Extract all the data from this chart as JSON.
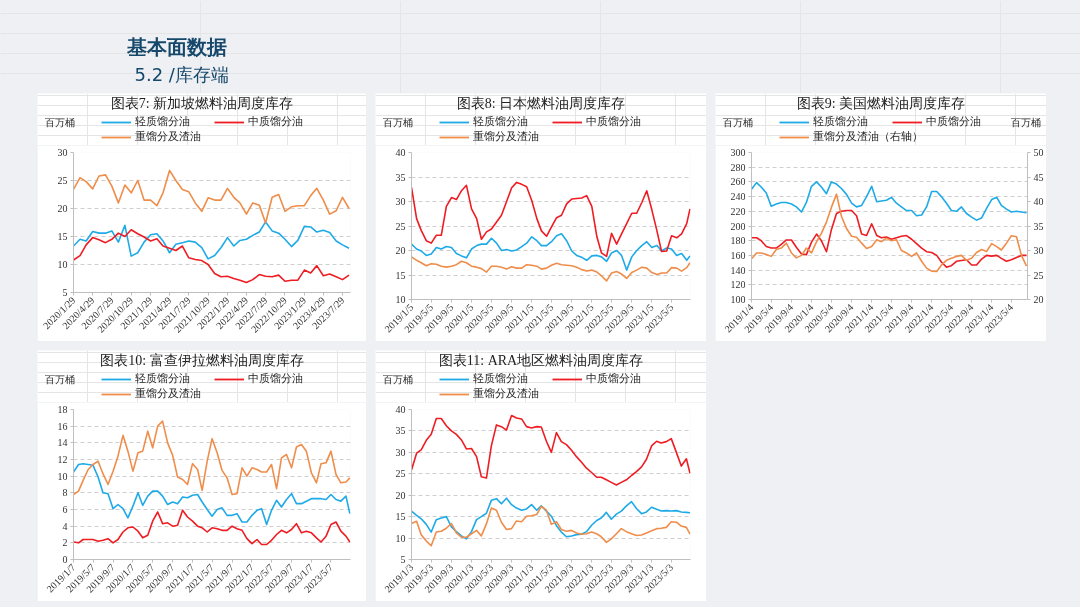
{
  "chart_data": [
    {
      "type": "line",
      "title": "图表7: 新加坡燃料油周度库存",
      "ylabel": "百万桶",
      "annotations": [
        "基本面数据",
        "5.2 /库存端"
      ],
      "x": [
        "2020-01-29",
        "2020-02-29",
        "2020-03-29",
        "2020-04-29",
        "2020-05-29",
        "2020-06-29",
        "2020-07-29",
        "2020-08-29",
        "2020-09-29",
        "2020-10-29",
        "2020-11-29",
        "2020-12-29",
        "2021-01-29",
        "2021-02-28",
        "2021-03-29",
        "2021-04-29",
        "2021-05-29",
        "2021-06-29",
        "2021-07-29",
        "2021-08-29",
        "2021-09-29",
        "2021-10-29",
        "2021-11-29",
        "2021-12-29",
        "2022-01-29",
        "2022-02-28",
        "2022-03-29",
        "2022-04-29",
        "2022-05-29",
        "2022-06-29",
        "2022-07-29",
        "2022-08-29",
        "2022-09-29",
        "2022-10-29",
        "2022-11-29",
        "2022-12-29",
        "2023-01-29",
        "2023-02-28",
        "2023-03-29",
        "2023-04-29",
        "2023-05-29",
        "2023-06-29",
        "2023-07-29",
        "2023-08-29"
      ],
      "series": [
        {
          "name": "轻质馏分油",
          "color": "#1eaae7",
          "values": [
            13.3,
            14.5,
            14.2,
            15.9,
            15.6,
            15.6,
            16.0,
            14.0,
            17.0,
            11.5,
            12.1,
            14.0,
            15.3,
            15.5,
            14.2,
            12.1,
            13.6,
            13.9,
            14.2,
            14.0,
            13.0,
            11.0,
            11.6,
            13.0,
            14.8,
            13.3,
            14.3,
            14.5,
            15.2,
            15.8,
            17.6,
            16.0,
            15.6,
            14.5,
            13.2,
            14.3,
            16.8,
            16.7,
            15.8,
            16.1,
            15.7,
            14.2,
            13.5,
            12.9
          ]
        },
        {
          "name": "中质馏分油",
          "color": "#ee1d23",
          "values": [
            10.8,
            11.6,
            13.5,
            14.8,
            14.4,
            13.9,
            14.5,
            15.6,
            15.0,
            16.2,
            15.5,
            14.9,
            14.2,
            14.6,
            13.3,
            12.9,
            12.5,
            13.3,
            11.2,
            10.9,
            10.7,
            10.0,
            8.4,
            7.8,
            7.9,
            7.5,
            7.2,
            6.8,
            7.3,
            8.2,
            7.9,
            7.8,
            8.1,
            7.0,
            7.2,
            7.2,
            9.0,
            8.5,
            9.8,
            8.0,
            8.3,
            7.8,
            7.3,
            8.1
          ]
        },
        {
          "name": "重馏分及渣油",
          "color": "#ef8d4b",
          "values": [
            23.4,
            25.5,
            24.8,
            23.5,
            25.8,
            26.0,
            24.0,
            21.0,
            24.2,
            22.8,
            25.0,
            21.5,
            21.5,
            20.5,
            22.8,
            26.8,
            25.0,
            23.4,
            23.0,
            21.0,
            19.5,
            21.9,
            21.5,
            21.5,
            23.6,
            22.0,
            21.0,
            19.0,
            21.0,
            20.6,
            17.4,
            22.0,
            22.5,
            19.5,
            20.3,
            20.5,
            20.5,
            22.3,
            23.6,
            21.5,
            19.0,
            19.6,
            22.0,
            20.0
          ]
        }
      ],
      "xlim": [
        "2020-01-29",
        "2023-09-05"
      ],
      "xticks": [
        {
          "value": "2020-01-29",
          "label": "2020/1/29"
        },
        {
          "value": "2020-04-29",
          "label": "2020/4/29"
        },
        {
          "value": "2020-07-29",
          "label": "2020/7/29"
        },
        {
          "value": "2020-10-29",
          "label": "2020/10/29"
        },
        {
          "value": "2021-01-29",
          "label": "2021/1/29"
        },
        {
          "value": "2021-04-29",
          "label": "2021/4/29"
        },
        {
          "value": "2021-07-29",
          "label": "2021/7/29"
        },
        {
          "value": "2021-10-29",
          "label": "2021/10/29"
        },
        {
          "value": "2022-01-29",
          "label": "2022/1/29"
        },
        {
          "value": "2022-04-29",
          "label": "2022/4/29"
        },
        {
          "value": "2022-07-29",
          "label": "2022/7/29"
        },
        {
          "value": "2022-10-29",
          "label": "2022/10/29"
        },
        {
          "value": "2023-01-29",
          "label": "2023/1/29"
        },
        {
          "value": "2023-04-29",
          "label": "2023/4/29"
        },
        {
          "value": "2023-07-29",
          "label": "2023/7/29"
        }
      ],
      "ylim": [
        5,
        30
      ],
      "yticks": [
        5,
        10,
        15,
        20,
        25,
        30
      ],
      "grid": "y",
      "legend": "top"
    },
    {
      "type": "line",
      "title": "图表8: 日本燃料油周度库存",
      "ylabel": "百万桶",
      "x": [
        "2019-01-05",
        "2019-02-05",
        "2019-03-05",
        "2019-04-05",
        "2019-05-05",
        "2019-06-05",
        "2019-07-05",
        "2019-08-05",
        "2019-09-05",
        "2019-10-05",
        "2019-11-05",
        "2019-12-05",
        "2020-01-05",
        "2020-02-05",
        "2020-03-05",
        "2020-04-05",
        "2020-05-05",
        "2020-06-05",
        "2020-07-05",
        "2020-08-05",
        "2020-09-05",
        "2020-10-05",
        "2020-11-05",
        "2020-12-05",
        "2021-01-05",
        "2021-02-05",
        "2021-03-05",
        "2021-04-05",
        "2021-05-05",
        "2021-06-05",
        "2021-07-05",
        "2021-08-05",
        "2021-09-05",
        "2021-10-05",
        "2021-11-05",
        "2021-12-05",
        "2022-01-05",
        "2022-02-05",
        "2022-03-05",
        "2022-04-05",
        "2022-05-05",
        "2022-06-05",
        "2022-07-05",
        "2022-08-05",
        "2022-09-05",
        "2022-10-05",
        "2022-11-05",
        "2022-12-05",
        "2023-01-05",
        "2023-02-05",
        "2023-03-05",
        "2023-04-05",
        "2023-05-05",
        "2023-06-05",
        "2023-07-05",
        "2023-08-05",
        "2023-08-25"
      ],
      "series": [
        {
          "name": "轻质馏分油",
          "color": "#1eaae7",
          "values": [
            21.3,
            20.3,
            19.9,
            19.0,
            19.3,
            20.6,
            20.3,
            20.8,
            20.6,
            19.4,
            18.9,
            18.5,
            20.3,
            21.0,
            21.3,
            21.3,
            22.5,
            21.5,
            20.0,
            20.2,
            19.9,
            20.1,
            20.8,
            21.5,
            22.8,
            22.0,
            21.0,
            21.0,
            21.8,
            23.0,
            23.4,
            22.0,
            19.9,
            19.0,
            18.6,
            18.0,
            18.9,
            19.0,
            18.7,
            17.8,
            19.5,
            20.0,
            19.0,
            16.0,
            18.7,
            20.0,
            21.0,
            21.8,
            20.6,
            21.0,
            19.9,
            20.5,
            20.3,
            19.0,
            19.4,
            18.0,
            18.9
          ]
        },
        {
          "name": "中质馏分油",
          "color": "#ee1d23",
          "values": [
            32.9,
            26.5,
            24.1,
            22.0,
            21.5,
            23.1,
            23.1,
            29.0,
            30.8,
            30.4,
            32.2,
            33.3,
            28.5,
            26.5,
            22.3,
            23.8,
            24.4,
            25.8,
            27.2,
            30.0,
            32.8,
            33.9,
            33.5,
            33.0,
            30.2,
            26.5,
            24.0,
            22.9,
            24.8,
            26.7,
            27.2,
            29.5,
            30.5,
            30.6,
            30.7,
            31.2,
            29.0,
            22.8,
            19.5,
            18.8,
            23.5,
            21.3,
            23.4,
            25.5,
            27.6,
            27.6,
            29.8,
            32.2,
            28.3,
            24.0,
            19.8,
            19.9,
            23.0,
            22.6,
            23.4,
            25.5,
            28.5
          ]
        },
        {
          "name": "重馏分及渣油",
          "color": "#ef8d4b",
          "values": [
            18.7,
            18.0,
            17.5,
            16.9,
            17.3,
            17.2,
            16.8,
            16.6,
            16.8,
            17.1,
            17.8,
            17.5,
            16.8,
            16.6,
            16.3,
            15.6,
            16.8,
            16.8,
            16.6,
            16.2,
            16.7,
            16.4,
            16.4,
            17.1,
            17.0,
            16.8,
            16.2,
            16.4,
            17.0,
            17.4,
            17.1,
            17.0,
            16.9,
            16.6,
            16.1,
            15.8,
            16.0,
            15.6,
            14.8,
            13.8,
            15.4,
            15.7,
            15.2,
            14.3,
            15.5,
            16.0,
            16.6,
            16.4,
            15.5,
            15.1,
            15.4,
            15.4,
            16.5,
            16.4,
            15.8,
            16.5,
            17.5
          ]
        }
      ],
      "xlim": [
        "2019-01-05",
        "2023-08-28"
      ],
      "xticks": [
        {
          "value": "2019-01-05",
          "label": "2019/1/5"
        },
        {
          "value": "2019-05-05",
          "label": "2019/5/5"
        },
        {
          "value": "2019-09-05",
          "label": "2019/9/5"
        },
        {
          "value": "2020-01-05",
          "label": "2020/1/5"
        },
        {
          "value": "2020-05-05",
          "label": "2020/5/5"
        },
        {
          "value": "2020-09-05",
          "label": "2020/9/5"
        },
        {
          "value": "2021-01-05",
          "label": "2021/1/5"
        },
        {
          "value": "2021-05-05",
          "label": "2021/5/5"
        },
        {
          "value": "2021-09-05",
          "label": "2021/9/5"
        },
        {
          "value": "2022-01-05",
          "label": "2022/1/5"
        },
        {
          "value": "2022-05-05",
          "label": "2022/5/5"
        },
        {
          "value": "2022-09-05",
          "label": "2022/9/5"
        },
        {
          "value": "2023-01-05",
          "label": "2023/1/5"
        },
        {
          "value": "2023-05-05",
          "label": "2023/5/5"
        }
      ],
      "ylim": [
        10,
        40
      ],
      "yticks": [
        10,
        15,
        20,
        25,
        30,
        35,
        40
      ],
      "grid": "y",
      "legend": "top"
    },
    {
      "type": "line",
      "title": "图表9: 美国燃料油周度库存",
      "ylabel": "百万桶",
      "y2label": "百万桶",
      "x": [
        "2019-01-04",
        "2019-02-04",
        "2019-03-04",
        "2019-04-04",
        "2019-05-04",
        "2019-06-04",
        "2019-07-04",
        "2019-08-04",
        "2019-09-04",
        "2019-10-04",
        "2019-11-04",
        "2019-12-04",
        "2020-01-04",
        "2020-02-04",
        "2020-03-04",
        "2020-04-04",
        "2020-05-04",
        "2020-06-04",
        "2020-07-04",
        "2020-08-04",
        "2020-09-04",
        "2020-10-04",
        "2020-11-04",
        "2020-12-04",
        "2021-01-04",
        "2021-02-04",
        "2021-03-04",
        "2021-04-04",
        "2021-05-04",
        "2021-06-04",
        "2021-07-04",
        "2021-08-04",
        "2021-09-04",
        "2021-10-04",
        "2021-11-04",
        "2021-12-04",
        "2022-01-04",
        "2022-02-04",
        "2022-03-04",
        "2022-04-04",
        "2022-05-04",
        "2022-06-04",
        "2022-07-04",
        "2022-08-04",
        "2022-09-04",
        "2022-10-04",
        "2022-11-04",
        "2022-12-04",
        "2023-01-04",
        "2023-02-04",
        "2023-03-04",
        "2023-04-04",
        "2023-05-04",
        "2023-06-04",
        "2023-07-04",
        "2023-08-04"
      ],
      "series": [
        {
          "name": "轻质馏分油",
          "color": "#1eaae7",
          "values": [
            250,
            259,
            253,
            245,
            227,
            230,
            232,
            232,
            230,
            226,
            219,
            232,
            254,
            260,
            253,
            244,
            260,
            257,
            251,
            243,
            231,
            226,
            228,
            240,
            254,
            233,
            234,
            235,
            239,
            231,
            226,
            221,
            221,
            214,
            215,
            226,
            247,
            247,
            240,
            231,
            221,
            220,
            226,
            217,
            212,
            208,
            211,
            224,
            236,
            239,
            228,
            223,
            219,
            220,
            219,
            218
          ]
        },
        {
          "name": "中质馏分油",
          "color": "#ee1d23",
          "values": [
            184,
            184,
            180,
            172,
            170,
            170,
            175,
            181,
            181,
            171,
            162,
            161,
            178,
            189,
            180,
            165,
            195,
            217,
            220,
            221,
            221,
            214,
            189,
            187,
            203,
            187,
            184,
            185,
            182,
            184,
            186,
            187,
            182,
            176,
            170,
            165,
            164,
            160,
            151,
            144,
            146,
            152,
            153,
            154,
            147,
            147,
            155,
            160,
            159,
            160,
            156,
            152,
            154,
            157,
            160,
            160
          ]
        },
        {
          "name": "重馏分及渣油（右轴）",
          "color": "#ef8d4b",
          "axis": "y2",
          "values": [
            28.3,
            29.5,
            29.5,
            29.2,
            28.8,
            30.2,
            30.5,
            31.5,
            29.5,
            28.5,
            29.0,
            30.5,
            29.5,
            31.8,
            33.5,
            35.8,
            38.8,
            41.5,
            37.0,
            34.5,
            32.9,
            32.7,
            31.5,
            30.4,
            30.8,
            32.2,
            31.8,
            32.5,
            32.0,
            32.2,
            30.0,
            29.5,
            28.8,
            29.5,
            27.8,
            26.4,
            25.8,
            25.7,
            27.0,
            28.0,
            28.4,
            28.8,
            29.0,
            28.0,
            28.4,
            29.6,
            30.2,
            29.8,
            31.4,
            30.8,
            30.1,
            31.5,
            33.0,
            32.8,
            29.0,
            26.8
          ]
        }
      ],
      "xlim": [
        "2019-01-04",
        "2023-08-10"
      ],
      "xticks": [
        {
          "value": "2019-01-04",
          "label": "2019/1/4"
        },
        {
          "value": "2019-05-04",
          "label": "2019/5/4"
        },
        {
          "value": "2019-09-04",
          "label": "2019/9/4"
        },
        {
          "value": "2020-01-04",
          "label": "2020/1/4"
        },
        {
          "value": "2020-05-04",
          "label": "2020/5/4"
        },
        {
          "value": "2020-09-04",
          "label": "2020/9/4"
        },
        {
          "value": "2021-01-04",
          "label": "2021/1/4"
        },
        {
          "value": "2021-05-04",
          "label": "2021/5/4"
        },
        {
          "value": "2021-09-04",
          "label": "2021/9/4"
        },
        {
          "value": "2022-01-04",
          "label": "2022/1/4"
        },
        {
          "value": "2022-05-04",
          "label": "2022/5/4"
        },
        {
          "value": "2022-09-04",
          "label": "2022/9/4"
        },
        {
          "value": "2023-01-04",
          "label": "2023/1/4"
        },
        {
          "value": "2023-05-04",
          "label": "2023/5/4"
        }
      ],
      "ylim": [
        100,
        300
      ],
      "yticks": [
        100,
        120,
        140,
        160,
        180,
        200,
        220,
        240,
        260,
        280,
        300
      ],
      "y2lim": [
        20,
        50
      ],
      "y2ticks": [
        20,
        25,
        30,
        35,
        40,
        45,
        50
      ],
      "grid": "y",
      "legend": "top"
    },
    {
      "type": "line",
      "title": "图表10: 富查伊拉燃料油周度库存",
      "ylabel": "百万桶",
      "x": [
        "2019-01-07",
        "2019-02-07",
        "2019-03-07",
        "2019-04-07",
        "2019-05-07",
        "2019-06-07",
        "2019-07-07",
        "2019-08-07",
        "2019-09-07",
        "2019-10-07",
        "2019-11-07",
        "2019-12-07",
        "2020-01-07",
        "2020-02-07",
        "2020-03-07",
        "2020-04-07",
        "2020-05-07",
        "2020-06-07",
        "2020-07-07",
        "2020-08-07",
        "2020-09-07",
        "2020-10-07",
        "2020-11-07",
        "2020-12-07",
        "2021-01-07",
        "2021-02-07",
        "2021-03-07",
        "2021-04-07",
        "2021-05-07",
        "2021-06-07",
        "2021-07-07",
        "2021-08-07",
        "2021-09-07",
        "2021-10-07",
        "2021-11-07",
        "2021-12-07",
        "2022-01-07",
        "2022-02-07",
        "2022-03-07",
        "2022-04-07",
        "2022-05-07",
        "2022-06-07",
        "2022-07-07",
        "2022-08-07",
        "2022-09-07",
        "2022-10-07",
        "2022-11-07",
        "2022-12-07",
        "2023-01-07",
        "2023-02-07",
        "2023-03-07",
        "2023-04-07",
        "2023-05-07",
        "2023-06-07",
        "2023-07-07",
        "2023-08-07",
        "2023-08-31"
      ],
      "series": [
        {
          "name": "轻质馏分油",
          "color": "#1eaae7",
          "values": [
            10.5,
            11.4,
            11.5,
            11.4,
            11.3,
            9.9,
            8.0,
            7.9,
            6.1,
            6.6,
            6.1,
            5.0,
            6.4,
            8.0,
            6.5,
            7.6,
            8.2,
            8.2,
            7.6,
            6.6,
            6.9,
            6.7,
            7.5,
            7.4,
            7.7,
            7.8,
            6.9,
            6.0,
            5.2,
            6.0,
            6.2,
            5.3,
            5.3,
            5.5,
            4.5,
            4.5,
            5.3,
            5.9,
            6.1,
            4.2,
            5.9,
            7.1,
            6.3,
            7.2,
            7.9,
            6.7,
            6.7,
            7.0,
            7.3,
            7.3,
            7.3,
            7.2,
            7.8,
            7.2,
            7.0,
            7.6,
            5.5
          ]
        },
        {
          "name": "中质馏分油",
          "color": "#ee1d23",
          "values": [
            2.1,
            2.0,
            2.4,
            2.4,
            2.4,
            2.2,
            2.3,
            2.5,
            2.0,
            2.4,
            3.3,
            3.8,
            3.9,
            3.4,
            2.6,
            2.9,
            4.6,
            5.7,
            4.3,
            4.4,
            4.0,
            4.1,
            5.9,
            5.1,
            4.6,
            4.0,
            3.8,
            3.3,
            3.8,
            3.7,
            3.5,
            3.5,
            4.0,
            3.7,
            3.5,
            2.5,
            1.9,
            2.4,
            1.8,
            1.8,
            2.3,
            3.0,
            3.5,
            3.2,
            3.6,
            4.3,
            3.2,
            3.4,
            3.2,
            2.6,
            2.1,
            2.8,
            4.2,
            4.5,
            3.4,
            2.8,
            2.1
          ]
        },
        {
          "name": "重馏分及渣油",
          "color": "#ef8d4b",
          "values": [
            7.8,
            8.2,
            9.5,
            10.8,
            11.4,
            11.8,
            10.3,
            9.0,
            10.6,
            12.4,
            14.9,
            13.0,
            10.6,
            12.8,
            13.0,
            15.4,
            13.4,
            16.0,
            16.6,
            14.0,
            12.5,
            9.9,
            9.6,
            9.0,
            11.5,
            10.8,
            8.3,
            11.8,
            14.5,
            12.8,
            10.7,
            9.8,
            7.8,
            7.9,
            11.0,
            10.0,
            11.0,
            10.8,
            10.5,
            10.5,
            11.4,
            8.5,
            12.2,
            12.6,
            11.0,
            13.5,
            13.8,
            13.0,
            10.4,
            9.2,
            11.5,
            11.6,
            13.0,
            10.2,
            9.2,
            9.3,
            9.8
          ]
        }
      ],
      "xlim": [
        "2019-01-07",
        "2023-09-04"
      ],
      "xticks": [
        {
          "value": "2019-01-07",
          "label": "2019/1/7"
        },
        {
          "value": "2019-05-07",
          "label": "2019/5/7"
        },
        {
          "value": "2019-09-07",
          "label": "2019/9/7"
        },
        {
          "value": "2020-01-07",
          "label": "2020/1/7"
        },
        {
          "value": "2020-05-07",
          "label": "2020/5/7"
        },
        {
          "value": "2020-09-07",
          "label": "2020/9/7"
        },
        {
          "value": "2021-01-07",
          "label": "2021/1/7"
        },
        {
          "value": "2021-05-07",
          "label": "2021/5/7"
        },
        {
          "value": "2021-09-07",
          "label": "2021/9/7"
        },
        {
          "value": "2022-01-07",
          "label": "2022/1/7"
        },
        {
          "value": "2022-05-07",
          "label": "2022/5/7"
        },
        {
          "value": "2022-09-07",
          "label": "2022/9/7"
        },
        {
          "value": "2023-01-07",
          "label": "2023/1/7"
        },
        {
          "value": "2023-05-07",
          "label": "2023/5/7"
        }
      ],
      "ylim": [
        0,
        18
      ],
      "yticks": [
        0,
        2,
        4,
        6,
        8,
        10,
        12,
        14,
        16,
        18
      ],
      "grid": "y",
      "legend": "top"
    },
    {
      "type": "line",
      "title": "图表11: ARA地区燃料油周度库存",
      "ylabel": "百万桶",
      "x": [
        "2019-01-03",
        "2019-02-03",
        "2019-03-03",
        "2019-04-03",
        "2019-05-03",
        "2019-06-03",
        "2019-07-03",
        "2019-08-03",
        "2019-09-03",
        "2019-10-03",
        "2019-11-03",
        "2019-12-03",
        "2020-01-03",
        "2020-02-03",
        "2020-03-03",
        "2020-04-03",
        "2020-05-03",
        "2020-06-03",
        "2020-07-03",
        "2020-08-03",
        "2020-09-03",
        "2020-10-03",
        "2020-11-03",
        "2020-12-03",
        "2021-01-03",
        "2021-02-03",
        "2021-03-03",
        "2021-04-03",
        "2021-05-03",
        "2021-06-03",
        "2021-07-03",
        "2021-08-03",
        "2021-09-03",
        "2021-10-03",
        "2021-11-03",
        "2021-12-03",
        "2022-01-03",
        "2022-02-03",
        "2022-03-03",
        "2022-04-03",
        "2022-05-03",
        "2022-06-03",
        "2022-07-03",
        "2022-08-03",
        "2022-09-03",
        "2022-10-03",
        "2022-11-03",
        "2022-12-03",
        "2023-01-03",
        "2023-02-03",
        "2023-03-03",
        "2023-04-03",
        "2023-05-03",
        "2023-06-03",
        "2023-07-03",
        "2023-08-03",
        "2023-08-25"
      ],
      "series": [
        {
          "name": "轻质馏分油",
          "color": "#1eaae7",
          "values": [
            16.3,
            15.3,
            14.5,
            13.2,
            11.4,
            14.3,
            14.7,
            15.0,
            12.6,
            11.5,
            10.5,
            9.8,
            11.5,
            14.3,
            15.0,
            15.8,
            18.8,
            19.2,
            18.0,
            19.3,
            17.8,
            17.0,
            16.5,
            16.8,
            17.8,
            16.5,
            17.5,
            16.3,
            15.1,
            12.9,
            11.4,
            10.3,
            10.5,
            10.8,
            10.9,
            11.5,
            13.0,
            14.1,
            14.7,
            16.0,
            14.4,
            15.6,
            16.3,
            17.5,
            18.5,
            16.9,
            15.7,
            16.1,
            17.2,
            16.7,
            16.3,
            16.4,
            16.3,
            16.4,
            16.1,
            16.0,
            15.9
          ]
        },
        {
          "name": "中质馏分油",
          "color": "#ee1d23",
          "values": [
            25.9,
            29.8,
            30.6,
            32.8,
            34.2,
            37.9,
            37.9,
            36.2,
            35.0,
            34.2,
            32.9,
            30.8,
            30.9,
            29.0,
            24.3,
            24.0,
            31.5,
            36.4,
            36.0,
            35.2,
            38.6,
            38.0,
            37.8,
            36.0,
            35.7,
            36.0,
            35.9,
            32.6,
            30.0,
            34.6,
            32.5,
            31.8,
            30.5,
            29.0,
            27.7,
            26.3,
            25.3,
            24.2,
            24.2,
            23.6,
            23.0,
            22.4,
            23.0,
            23.6,
            24.6,
            25.5,
            26.6,
            28.4,
            31.5,
            32.6,
            32.2,
            32.5,
            33.2,
            30.0,
            26.8,
            28.5,
            25.1
          ]
        },
        {
          "name": "重馏分及渣油",
          "color": "#ef8d4b",
          "values": [
            13.4,
            13.9,
            10.8,
            9.3,
            8.2,
            11.4,
            11.6,
            12.3,
            13.4,
            11.2,
            10.2,
            10.2,
            11.0,
            11.8,
            10.5,
            13.3,
            17.0,
            16.5,
            13.7,
            12.0,
            12.2,
            14.0,
            13.8,
            15.1,
            15.2,
            15.5,
            17.4,
            16.5,
            13.2,
            13.8,
            12.0,
            11.6,
            11.8,
            11.2,
            10.9,
            11.0,
            11.4,
            11.0,
            10.3,
            9.0,
            9.8,
            11.0,
            12.2,
            11.5,
            11.0,
            10.6,
            10.7,
            11.2,
            11.7,
            12.2,
            12.3,
            12.5,
            13.8,
            13.7,
            12.8,
            12.5,
            10.9
          ]
        }
      ],
      "xlim": [
        "2019-01-03",
        "2023-08-28"
      ],
      "xticks": [
        {
          "value": "2019-01-03",
          "label": "2019/1/3"
        },
        {
          "value": "2019-05-03",
          "label": "2019/5/3"
        },
        {
          "value": "2019-09-03",
          "label": "2019/9/3"
        },
        {
          "value": "2020-01-03",
          "label": "2020/1/3"
        },
        {
          "value": "2020-05-03",
          "label": "2020/5/3"
        },
        {
          "value": "2020-09-03",
          "label": "2020/9/3"
        },
        {
          "value": "2021-01-03",
          "label": "2021/1/3"
        },
        {
          "value": "2021-05-03",
          "label": "2021/5/3"
        },
        {
          "value": "2021-09-03",
          "label": "2021/9/3"
        },
        {
          "value": "2022-01-03",
          "label": "2022/1/3"
        },
        {
          "value": "2022-05-03",
          "label": "2022/5/3"
        },
        {
          "value": "2022-09-03",
          "label": "2022/9/3"
        },
        {
          "value": "2023-01-03",
          "label": "2023/1/3"
        },
        {
          "value": "2023-05-03",
          "label": "2023/5/3"
        }
      ],
      "ylim": [
        5,
        40
      ],
      "yticks": [
        5,
        10,
        15,
        20,
        25,
        30,
        35,
        40
      ],
      "grid": "y",
      "legend": "top"
    }
  ]
}
